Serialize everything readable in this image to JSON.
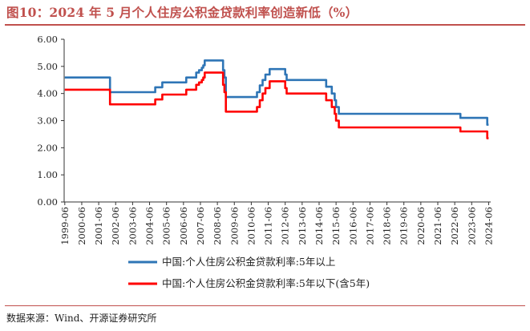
{
  "title": "图10：2024 年 5 月个人住房公积金贷款利率创造新低（%）",
  "source": "数据来源：Wind、开源证券研究所",
  "chart_data": {
    "type": "line",
    "ylim": [
      0,
      6
    ],
    "yticks": [
      "0.00",
      "1.00",
      "2.00",
      "3.00",
      "4.00",
      "5.00",
      "6.00"
    ],
    "xlim": [
      1999.42,
      2024.58
    ],
    "xticks": [
      "1999-06",
      "2000-06",
      "2001-06",
      "2002-06",
      "2003-06",
      "2004-06",
      "2005-06",
      "2006-06",
      "2007-06",
      "2008-06",
      "2009-06",
      "2010-06",
      "2011-06",
      "2012-06",
      "2013-06",
      "2014-06",
      "2015-06",
      "2016-06",
      "2017-06",
      "2018-06",
      "2019-06",
      "2020-06",
      "2021-06",
      "2022-06",
      "2023-06",
      "2024-06"
    ],
    "grid": false,
    "legend_position": "bottom",
    "series": [
      {
        "name": "中国:个人住房公积金贷款利率:5年以上",
        "color": "#2e75b6",
        "points": [
          [
            "1999-06",
            4.59
          ],
          [
            "2002-02",
            4.59
          ],
          [
            "2002-02",
            4.05
          ],
          [
            "2004-10",
            4.05
          ],
          [
            "2004-10",
            4.23
          ],
          [
            "2005-03",
            4.23
          ],
          [
            "2005-03",
            4.41
          ],
          [
            "2006-08",
            4.41
          ],
          [
            "2006-08",
            4.59
          ],
          [
            "2007-03",
            4.59
          ],
          [
            "2007-03",
            4.77
          ],
          [
            "2007-05",
            4.77
          ],
          [
            "2007-05",
            4.86
          ],
          [
            "2007-07",
            4.86
          ],
          [
            "2007-07",
            4.95
          ],
          [
            "2007-08",
            4.95
          ],
          [
            "2007-08",
            5.04
          ],
          [
            "2007-09",
            5.04
          ],
          [
            "2007-09",
            5.22
          ],
          [
            "2008-10",
            5.22
          ],
          [
            "2008-10",
            5.13
          ],
          [
            "2008-10",
            5.13
          ],
          [
            "2008-10",
            4.86
          ],
          [
            "2008-11",
            4.86
          ],
          [
            "2008-11",
            4.59
          ],
          [
            "2008-12",
            4.59
          ],
          [
            "2008-12",
            3.87
          ],
          [
            "2010-10",
            3.87
          ],
          [
            "2010-10",
            4.05
          ],
          [
            "2010-12",
            4.05
          ],
          [
            "2010-12",
            4.3
          ],
          [
            "2011-02",
            4.3
          ],
          [
            "2011-02",
            4.5
          ],
          [
            "2011-04",
            4.5
          ],
          [
            "2011-04",
            4.7
          ],
          [
            "2011-07",
            4.7
          ],
          [
            "2011-07",
            4.9
          ],
          [
            "2012-06",
            4.9
          ],
          [
            "2012-06",
            4.7
          ],
          [
            "2012-07",
            4.7
          ],
          [
            "2012-07",
            4.5
          ],
          [
            "2014-11",
            4.5
          ],
          [
            "2014-11",
            4.25
          ],
          [
            "2015-03",
            4.25
          ],
          [
            "2015-03",
            4.0
          ],
          [
            "2015-05",
            4.0
          ],
          [
            "2015-05",
            3.75
          ],
          [
            "2015-06",
            3.75
          ],
          [
            "2015-06",
            3.5
          ],
          [
            "2015-08",
            3.5
          ],
          [
            "2015-08",
            3.25
          ],
          [
            "2022-10",
            3.25
          ],
          [
            "2022-10",
            3.1
          ],
          [
            "2024-05",
            3.1
          ],
          [
            "2024-05",
            2.85
          ],
          [
            "2024-06",
            2.85
          ]
        ]
      },
      {
        "name": "中国:个人住房公积金贷款利率:5年以下(含5年)",
        "color": "#ff0000",
        "points": [
          [
            "1999-06",
            4.14
          ],
          [
            "2002-02",
            4.14
          ],
          [
            "2002-02",
            3.6
          ],
          [
            "2004-10",
            3.6
          ],
          [
            "2004-10",
            3.78
          ],
          [
            "2005-03",
            3.78
          ],
          [
            "2005-03",
            3.96
          ],
          [
            "2006-08",
            3.96
          ],
          [
            "2006-08",
            4.14
          ],
          [
            "2007-03",
            4.14
          ],
          [
            "2007-03",
            4.32
          ],
          [
            "2007-05",
            4.32
          ],
          [
            "2007-05",
            4.41
          ],
          [
            "2007-07",
            4.41
          ],
          [
            "2007-07",
            4.5
          ],
          [
            "2007-08",
            4.5
          ],
          [
            "2007-08",
            4.59
          ],
          [
            "2007-09",
            4.59
          ],
          [
            "2007-09",
            4.77
          ],
          [
            "2008-10",
            4.77
          ],
          [
            "2008-10",
            4.6
          ],
          [
            "2008-10",
            4.6
          ],
          [
            "2008-10",
            4.32
          ],
          [
            "2008-11",
            4.32
          ],
          [
            "2008-11",
            4.05
          ],
          [
            "2008-12",
            4.05
          ],
          [
            "2008-12",
            3.33
          ],
          [
            "2010-10",
            3.33
          ],
          [
            "2010-10",
            3.5
          ],
          [
            "2010-12",
            3.5
          ],
          [
            "2010-12",
            3.75
          ],
          [
            "2011-02",
            3.75
          ],
          [
            "2011-02",
            4.0
          ],
          [
            "2011-04",
            4.0
          ],
          [
            "2011-04",
            4.2
          ],
          [
            "2011-07",
            4.2
          ],
          [
            "2011-07",
            4.45
          ],
          [
            "2012-06",
            4.45
          ],
          [
            "2012-06",
            4.2
          ],
          [
            "2012-07",
            4.2
          ],
          [
            "2012-07",
            4.0
          ],
          [
            "2014-11",
            4.0
          ],
          [
            "2014-11",
            3.75
          ],
          [
            "2015-03",
            3.75
          ],
          [
            "2015-03",
            3.5
          ],
          [
            "2015-05",
            3.5
          ],
          [
            "2015-05",
            3.25
          ],
          [
            "2015-06",
            3.25
          ],
          [
            "2015-06",
            3.0
          ],
          [
            "2015-08",
            3.0
          ],
          [
            "2015-08",
            2.75
          ],
          [
            "2022-10",
            2.75
          ],
          [
            "2022-10",
            2.6
          ],
          [
            "2024-05",
            2.6
          ],
          [
            "2024-05",
            2.35
          ],
          [
            "2024-06",
            2.35
          ]
        ]
      }
    ]
  }
}
